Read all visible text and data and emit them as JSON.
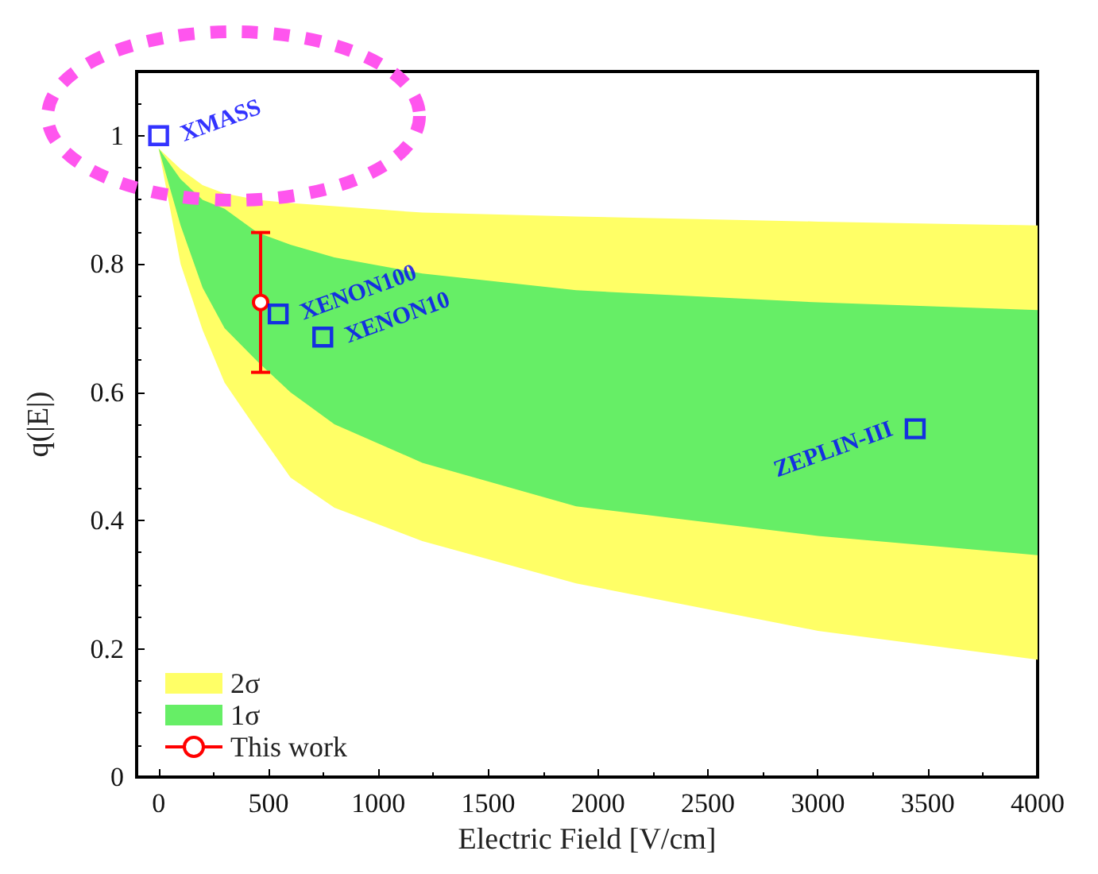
{
  "chart_data": {
    "type": "area",
    "xlabel": "Electric Field [V/cm]",
    "ylabel": "q(|E|)",
    "xlim": [
      -100,
      4000
    ],
    "xticks": [
      0,
      500,
      1000,
      1500,
      2000,
      2500,
      3000,
      3500,
      4000
    ],
    "ylim": [
      0,
      1.1
    ],
    "yticks": [
      0,
      0.2,
      0.4,
      0.6,
      0.8,
      1
    ],
    "grid": false,
    "legend": "bottom left",
    "series": [
      {
        "name": "2σ",
        "color": "#ffff66",
        "x": [
          0,
          100,
          200,
          300,
          450,
          600,
          800,
          1200,
          1900,
          3000,
          4000
        ],
        "values": [
          null,
          null,
          null,
          null,
          null,
          null,
          null,
          null,
          null,
          null,
          null
        ],
        "upper": [
          0.98,
          0.948,
          0.923,
          0.91,
          0.9,
          0.895,
          0.89,
          0.88,
          0.874,
          0.866,
          0.86
        ],
        "lower": [
          0.98,
          0.8,
          0.697,
          0.615,
          0.54,
          0.467,
          0.42,
          0.368,
          0.302,
          0.228,
          0.183
        ]
      },
      {
        "name": "1σ",
        "color": "#66ee66",
        "x": [
          0,
          100,
          200,
          300,
          450,
          600,
          800,
          1200,
          1900,
          3000,
          4000
        ],
        "values": [
          null,
          null,
          null,
          null,
          null,
          null,
          null,
          null,
          null,
          null,
          null
        ],
        "upper": [
          0.98,
          0.932,
          0.9,
          0.886,
          0.849,
          0.83,
          0.81,
          0.785,
          0.759,
          0.74,
          0.728
        ],
        "lower": [
          0.98,
          0.86,
          0.763,
          0.7,
          0.648,
          0.6,
          0.55,
          0.49,
          0.422,
          0.376,
          0.346
        ]
      },
      {
        "name": "This work",
        "type": "line",
        "color": "#ff0000",
        "marker": "circle",
        "x": [
          464
        ],
        "values": [
          0.74
        ],
        "errors": [
          [
            0.631,
            0.849
          ]
        ]
      },
      {
        "name": "XMASS",
        "type": "scatter",
        "color": "#0000ff",
        "marker": "square",
        "x": [
          0
        ],
        "values": [
          1.0
        ]
      },
      {
        "name": "XENON100",
        "type": "scatter",
        "color": "#0000ff",
        "marker": "square",
        "x": [
          544
        ],
        "values": [
          0.722
        ]
      },
      {
        "name": "XENON10",
        "type": "scatter",
        "color": "#0000ff",
        "marker": "square",
        "x": [
          747
        ],
        "values": [
          0.686
        ]
      },
      {
        "name": "ZEPLIN-III",
        "type": "scatter",
        "color": "#0000ff",
        "marker": "square",
        "x": [
          3443
        ],
        "values": [
          0.543
        ]
      }
    ]
  }
}
